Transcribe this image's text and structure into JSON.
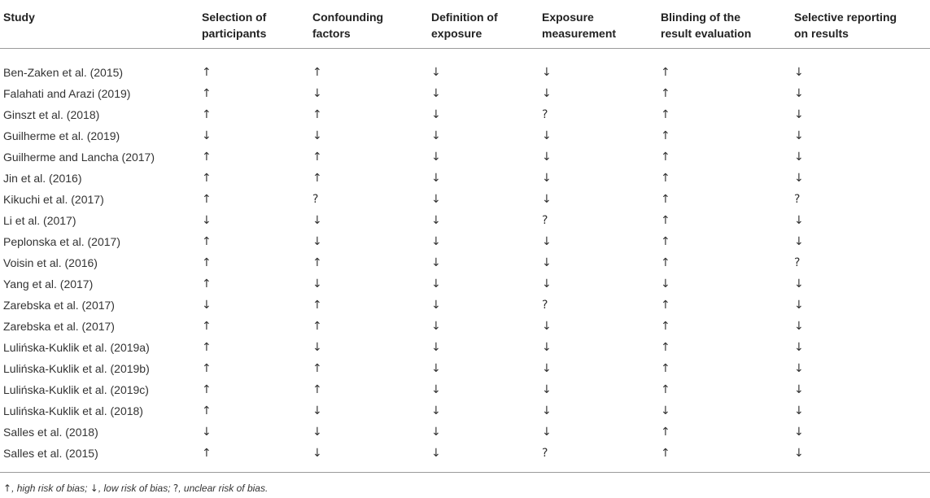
{
  "table": {
    "headers": [
      [
        "Study"
      ],
      [
        "Selection of",
        "participants"
      ],
      [
        "Confounding",
        "factors"
      ],
      [
        "Definition of",
        "exposure"
      ],
      [
        "Exposure",
        "measurement"
      ],
      [
        "Blinding of the",
        "result evaluation"
      ],
      [
        "Selective reporting",
        "on results"
      ]
    ],
    "rows": [
      [
        "Ben-Zaken et al. (2015)",
        "↑",
        "↑",
        "↓",
        "↓",
        "↑",
        "↓"
      ],
      [
        "Falahati and Arazi (2019)",
        "↑",
        "↓",
        "↓",
        "↓",
        "↑",
        "↓"
      ],
      [
        "Ginszt et al. (2018)",
        "↑",
        "↑",
        "↓",
        "?",
        "↑",
        "↓"
      ],
      [
        "Guilherme et al. (2019)",
        "↓",
        "↓",
        "↓",
        "↓",
        "↑",
        "↓"
      ],
      [
        "Guilherme and Lancha (2017)",
        "↑",
        "↑",
        "↓",
        "↓",
        "↑",
        "↓"
      ],
      [
        "Jin et al. (2016)",
        "↑",
        "↑",
        "↓",
        "↓",
        "↑",
        "↓"
      ],
      [
        "Kikuchi et al. (2017)",
        "↑",
        "?",
        "↓",
        "↓",
        "↑",
        "?"
      ],
      [
        "Li et al. (2017)",
        "↓",
        "↓",
        "↓",
        "?",
        "↑",
        "↓"
      ],
      [
        "Peplonska et al. (2017)",
        "↑",
        "↓",
        "↓",
        "↓",
        "↑",
        "↓"
      ],
      [
        "Voisin et al. (2016)",
        "↑",
        "↑",
        "↓",
        "↓",
        "↑",
        "?"
      ],
      [
        "Yang et al. (2017)",
        "↑",
        "↓",
        "↓",
        "↓",
        "↓",
        "↓"
      ],
      [
        "Zarebska et al. (2017)",
        "↓",
        "↑",
        "↓",
        "?",
        "↑",
        "↓"
      ],
      [
        "Zarebska et al. (2017)",
        "↑",
        "↑",
        "↓",
        "↓",
        "↑",
        "↓"
      ],
      [
        "Lulińska-Kuklik et al. (2019a)",
        "↑",
        "↓",
        "↓",
        "↓",
        "↑",
        "↓"
      ],
      [
        "Lulińska-Kuklik et al. (2019b)",
        "↑",
        "↑",
        "↓",
        "↓",
        "↑",
        "↓"
      ],
      [
        "Lulińska-Kuklik et al. (2019c)",
        "↑",
        "↑",
        "↓",
        "↓",
        "↑",
        "↓"
      ],
      [
        "Lulińska-Kuklik et al. (2018)",
        "↑",
        "↓",
        "↓",
        "↓",
        "↓",
        "↓"
      ],
      [
        "Salles et al. (2018)",
        "↓",
        "↓",
        "↓",
        "↓",
        "↑",
        "↓"
      ],
      [
        "Salles et al. (2015)",
        "↑",
        "↓",
        "↓",
        "?",
        "↑",
        "↓"
      ]
    ]
  },
  "footnote": [
    {
      "symbol": "↑",
      "text": ", high risk of bias; "
    },
    {
      "symbol": "↓",
      "text": ", low risk of bias; "
    },
    {
      "symbol": "?",
      "text": ", unclear risk of bias."
    }
  ]
}
